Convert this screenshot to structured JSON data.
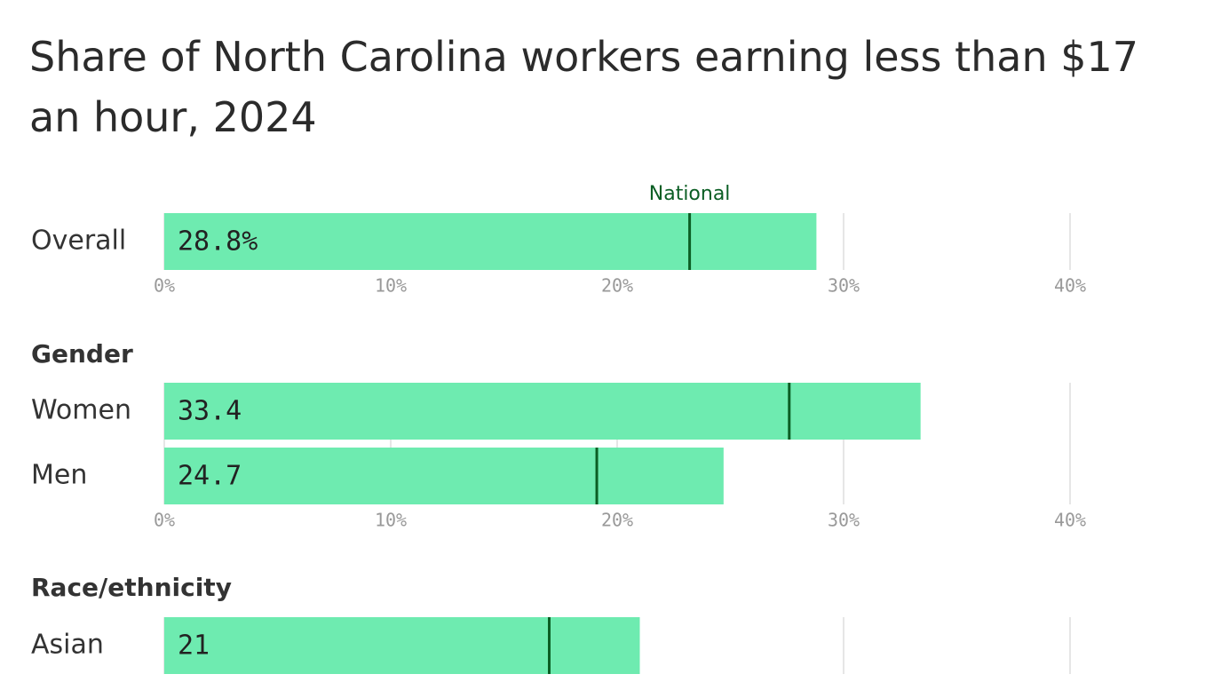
{
  "title": "Share of North Carolina workers earning less than $17 an hour, 2024",
  "chart_data": [
    {
      "type": "bar",
      "orientation": "horizontal",
      "categories": [
        "Overall"
      ],
      "values": [
        28.8
      ],
      "value_labels": [
        "28.8%"
      ],
      "color": "#6eebb0",
      "marker": {
        "name": "National",
        "values": [
          23.2
        ],
        "color": "#0b5e24"
      },
      "xlim": [
        0,
        45
      ],
      "xticks": [
        {
          "value": 0,
          "label": "0%"
        },
        {
          "value": 10,
          "label": "10%"
        },
        {
          "value": 20,
          "label": "20%"
        },
        {
          "value": 30,
          "label": "30%"
        },
        {
          "value": 40,
          "label": "40%"
        }
      ],
      "grid": true,
      "xtick_labels": true
    },
    {
      "type": "bar",
      "orientation": "horizontal",
      "title": "Gender",
      "categories": [
        "Women",
        "Men"
      ],
      "values": [
        33.4,
        24.7
      ],
      "value_labels": [
        "33.4",
        "24.7"
      ],
      "color": "#6eebb0",
      "marker": {
        "values": [
          27.6,
          19.1
        ],
        "color": "#0b5e24"
      },
      "xlim": [
        0,
        45
      ],
      "xticks": [
        {
          "value": 0,
          "label": "0%"
        },
        {
          "value": 10,
          "label": "10%"
        },
        {
          "value": 20,
          "label": "20%"
        },
        {
          "value": 30,
          "label": "30%"
        },
        {
          "value": 40,
          "label": "40%"
        }
      ],
      "grid": true,
      "xtick_labels": true
    },
    {
      "type": "bar",
      "orientation": "horizontal",
      "title": "Race/ethnicity",
      "categories": [
        "Asian"
      ],
      "values": [
        21
      ],
      "value_labels": [
        "21"
      ],
      "color": "#6eebb0",
      "marker": {
        "values": [
          17.0
        ],
        "color": "#0b5e24"
      },
      "xlim": [
        0,
        45
      ],
      "xticks": [
        {
          "value": 0,
          "label": "0%"
        },
        {
          "value": 10,
          "label": "10%"
        },
        {
          "value": 20,
          "label": "20%"
        },
        {
          "value": 30,
          "label": "30%"
        },
        {
          "value": 40,
          "label": "40%"
        }
      ],
      "grid": true,
      "xtick_labels": false
    }
  ]
}
